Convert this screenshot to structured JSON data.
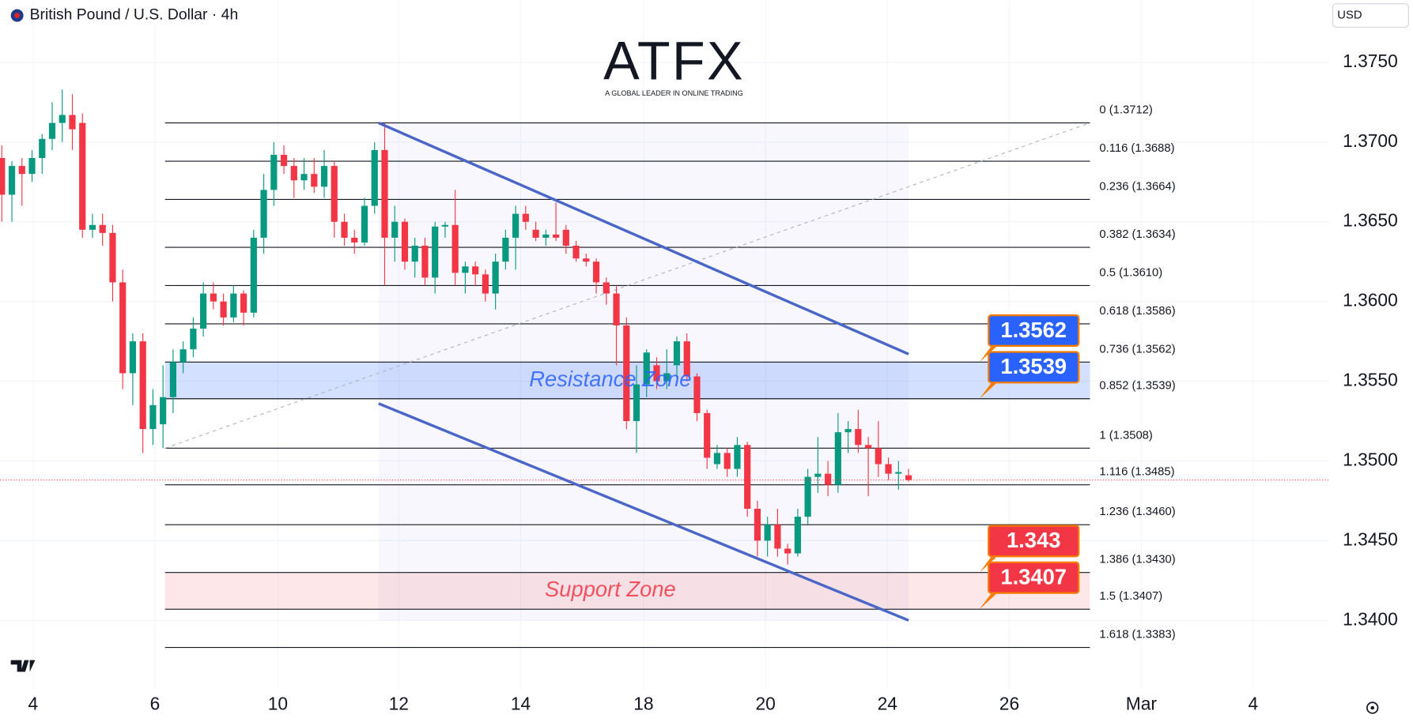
{
  "header": {
    "symbol_title": "British Pound / U.S. Dollar · 4h",
    "currency": "USD"
  },
  "logo": {
    "brand": "ATFX",
    "tagline": "A GLOBAL LEADER IN ONLINE TRADING"
  },
  "chart_data": {
    "type": "candlestick",
    "series": [
      {
        "up_color": "#089981",
        "down_color": "#f23645",
        "open": [
          1.369,
          1.3667,
          1.3685,
          1.368,
          1.369,
          1.3702,
          1.3712,
          1.3717,
          1.3712,
          1.3645,
          1.3648,
          1.3643,
          1.3612,
          1.3555,
          1.3575,
          1.352,
          1.3523,
          1.354,
          1.3562,
          1.357,
          1.3583,
          1.3605,
          1.36,
          1.359,
          1.3605,
          1.3593,
          1.364,
          1.367,
          1.3692,
          1.3685,
          1.3676,
          1.368,
          1.3672,
          1.3685,
          1.365,
          1.364,
          1.3637,
          1.366,
          1.3695,
          1.364,
          1.365,
          1.3625,
          1.3635,
          1.3615,
          1.3647,
          1.3648,
          1.3618,
          1.3622,
          1.3617,
          1.3605,
          1.3625,
          1.364,
          1.3655,
          1.3645,
          1.364,
          1.3642,
          1.3645,
          1.3635,
          1.3627,
          1.3625,
          1.3612,
          1.3605,
          1.3585,
          1.3525,
          1.3548,
          1.356,
          1.355,
          1.356,
          1.3575,
          1.3553,
          1.353,
          1.3498,
          1.3505,
          1.3495,
          1.351,
          1.347,
          1.345,
          1.346,
          1.3445,
          1.3442,
          1.3465,
          1.349,
          1.3492,
          1.3485,
          1.3518,
          1.352,
          1.351,
          1.3508,
          1.3498,
          1.3492,
          1.3491
        ],
        "high": [
          1.3698,
          1.3688,
          1.369,
          1.3695,
          1.3705,
          1.3725,
          1.3733,
          1.373,
          1.3718,
          1.3655,
          1.3655,
          1.3648,
          1.362,
          1.358,
          1.358,
          1.3545,
          1.356,
          1.357,
          1.3575,
          1.359,
          1.3612,
          1.3612,
          1.3605,
          1.361,
          1.3607,
          1.3645,
          1.368,
          1.37,
          1.3698,
          1.369,
          1.369,
          1.369,
          1.3695,
          1.3688,
          1.3655,
          1.3645,
          1.3665,
          1.37,
          1.3712,
          1.366,
          1.3652,
          1.364,
          1.364,
          1.365,
          1.365,
          1.367,
          1.3625,
          1.3625,
          1.362,
          1.363,
          1.3645,
          1.366,
          1.366,
          1.365,
          1.3645,
          1.3662,
          1.3648,
          1.3638,
          1.363,
          1.3627,
          1.3615,
          1.361,
          1.359,
          1.356,
          1.357,
          1.3565,
          1.357,
          1.3578,
          1.358,
          1.3555,
          1.3532,
          1.351,
          1.3508,
          1.3515,
          1.3512,
          1.3475,
          1.3465,
          1.347,
          1.3448,
          1.347,
          1.3495,
          1.3515,
          1.35,
          1.353,
          1.3525,
          1.3532,
          1.3515,
          1.3525,
          1.3502,
          1.35,
          1.3495
        ],
        "low": [
          1.365,
          1.365,
          1.366,
          1.3675,
          1.368,
          1.3695,
          1.37,
          1.3695,
          1.364,
          1.364,
          1.3635,
          1.36,
          1.3545,
          1.3535,
          1.3505,
          1.351,
          1.3508,
          1.353,
          1.3555,
          1.3565,
          1.3578,
          1.3595,
          1.3585,
          1.3587,
          1.3585,
          1.359,
          1.363,
          1.366,
          1.368,
          1.3665,
          1.367,
          1.3668,
          1.3665,
          1.364,
          1.3635,
          1.363,
          1.3635,
          1.3655,
          1.361,
          1.3625,
          1.362,
          1.3615,
          1.361,
          1.3605,
          1.364,
          1.361,
          1.3605,
          1.361,
          1.36,
          1.3595,
          1.362,
          1.362,
          1.3645,
          1.3638,
          1.3635,
          1.3638,
          1.363,
          1.3625,
          1.3622,
          1.3605,
          1.3598,
          1.356,
          1.352,
          1.3505,
          1.354,
          1.3545,
          1.3545,
          1.3552,
          1.355,
          1.3525,
          1.3495,
          1.3495,
          1.349,
          1.349,
          1.3465,
          1.344,
          1.344,
          1.344,
          1.3435,
          1.344,
          1.346,
          1.348,
          1.3478,
          1.348,
          1.3505,
          1.3505,
          1.3478,
          1.349,
          1.3488,
          1.3482,
          1.3487
        ],
        "close": [
          1.3667,
          1.3685,
          1.368,
          1.369,
          1.3702,
          1.3712,
          1.3717,
          1.3708,
          1.3645,
          1.3648,
          1.3643,
          1.3612,
          1.3555,
          1.3575,
          1.352,
          1.3535,
          1.354,
          1.3562,
          1.357,
          1.3583,
          1.3605,
          1.36,
          1.359,
          1.3605,
          1.3593,
          1.364,
          1.367,
          1.3692,
          1.3685,
          1.3676,
          1.368,
          1.3672,
          1.3685,
          1.365,
          1.364,
          1.3637,
          1.366,
          1.3695,
          1.364,
          1.365,
          1.3625,
          1.3635,
          1.3615,
          1.3647,
          1.3648,
          1.3618,
          1.3622,
          1.3617,
          1.3605,
          1.3625,
          1.364,
          1.3655,
          1.365,
          1.364,
          1.3642,
          1.364,
          1.3635,
          1.3627,
          1.3625,
          1.3612,
          1.3605,
          1.3585,
          1.3525,
          1.3548,
          1.3568,
          1.355,
          1.3555,
          1.3575,
          1.3553,
          1.353,
          1.3502,
          1.3505,
          1.3495,
          1.351,
          1.347,
          1.345,
          1.346,
          1.3445,
          1.3442,
          1.3465,
          1.349,
          1.3492,
          1.3485,
          1.3518,
          1.352,
          1.351,
          1.3508,
          1.3498,
          1.3492,
          1.3493,
          1.3488
        ]
      }
    ],
    "xlim": [
      -0.18,
      131.75
    ],
    "ylim": [
      1.3357,
      1.3789
    ],
    "yticks": [
      {
        "value": 1.34,
        "label": "1.3400"
      },
      {
        "value": 1.345,
        "label": "1.3450"
      },
      {
        "value": 1.35,
        "label": "1.3500"
      },
      {
        "value": 1.355,
        "label": "1.3550"
      },
      {
        "value": 1.36,
        "label": "1.3600"
      },
      {
        "value": 1.365,
        "label": "1.3650"
      },
      {
        "value": 1.37,
        "label": "1.3700"
      },
      {
        "value": 1.375,
        "label": "1.3750"
      }
    ],
    "xticks": [
      {
        "value": 3.1,
        "label": "4"
      },
      {
        "value": 15.2,
        "label": "6"
      },
      {
        "value": 27.4,
        "label": "10"
      },
      {
        "value": 39.4,
        "label": "12"
      },
      {
        "value": 51.5,
        "label": "14"
      },
      {
        "value": 63.7,
        "label": "18"
      },
      {
        "value": 75.8,
        "label": "20"
      },
      {
        "value": 87.9,
        "label": "24"
      },
      {
        "value": 100.0,
        "label": "26"
      },
      {
        "value": 113.1,
        "label": "Mar"
      },
      {
        "value": 124.2,
        "label": "4"
      }
    ],
    "grid": true,
    "last_price": 1.3488,
    "fib_x": [
      16.2,
      108
    ],
    "fib_levels": [
      {
        "label": "0 (1.3712)",
        "value": 1.3712
      },
      {
        "label": "0.116 (1.3688)",
        "value": 1.3688
      },
      {
        "label": "0.236 (1.3664)",
        "value": 1.3664
      },
      {
        "label": "0.382 (1.3634)",
        "value": 1.3634
      },
      {
        "label": "0.5 (1.3610)",
        "value": 1.361
      },
      {
        "label": "0.618 (1.3586)",
        "value": 1.3586
      },
      {
        "label": "0.736 (1.3562)",
        "value": 1.3562
      },
      {
        "label": "0.852 (1.3539)",
        "value": 1.3539
      },
      {
        "label": "1 (1.3508)",
        "value": 1.3508
      },
      {
        "label": "1.116 (1.3485)",
        "value": 1.3485
      },
      {
        "label": "1.236 (1.3460)",
        "value": 1.346
      },
      {
        "label": "1.386 (1.3430)",
        "value": 1.343
      },
      {
        "label": "1.5 (1.3407)",
        "value": 1.3407
      },
      {
        "label": "1.618 (1.3383)",
        "value": 1.3383
      }
    ],
    "trend_line": {
      "x": [
        16.2,
        108
      ],
      "y": [
        1.3508,
        1.3712
      ]
    },
    "zones": [
      {
        "label": "Resistance Zone",
        "range": [
          1.3539,
          1.3562
        ],
        "color": "#2962ff"
      },
      {
        "label": "Support Zone",
        "range": [
          1.3407,
          1.343
        ],
        "color": "#f23645"
      }
    ],
    "channel": [
      {
        "x": [
          37.4,
          90
        ],
        "y": [
          1.3712,
          1.3567
        ]
      },
      {
        "x": [
          37.4,
          90
        ],
        "y": [
          1.3536,
          1.34
        ]
      }
    ],
    "channel_color": "#4a67c8",
    "price_tags": [
      {
        "value": 1.3562,
        "color": "#2962ff"
      },
      {
        "value": 1.3539,
        "color": "#2962ff"
      },
      {
        "value": 1.343,
        "color": "#f23645"
      },
      {
        "value": 1.3407,
        "color": "#f23645"
      }
    ]
  }
}
